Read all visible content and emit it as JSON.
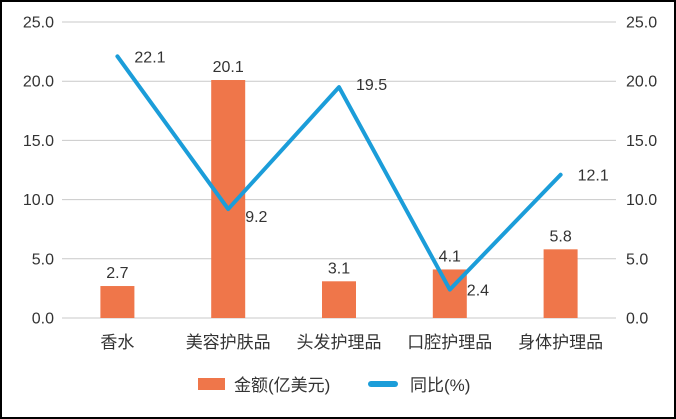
{
  "chart_data": {
    "type": "combo",
    "title": "",
    "categories": [
      "香水",
      "美容护肤品",
      "头发护理品",
      "口腔护理品",
      "身体护理品"
    ],
    "series": [
      {
        "name": "金额(亿美元)",
        "type": "bar",
        "color": "#EF764A",
        "values": [
          2.7,
          20.1,
          3.1,
          4.1,
          5.8
        ],
        "data_labels": [
          "2.7",
          "20.1",
          "3.1",
          "4.1",
          "5.8"
        ]
      },
      {
        "name": "同比(%)",
        "type": "line",
        "color": "#1B9DD9",
        "values": [
          22.1,
          9.2,
          19.5,
          2.4,
          12.1
        ],
        "data_labels": [
          "22.1",
          "9.2",
          "19.5",
          "2.4",
          "12.1"
        ]
      }
    ],
    "left_axis": {
      "min": 0,
      "max": 25,
      "step": 5,
      "tick_labels": [
        "0.0",
        "5.0",
        "10.0",
        "15.0",
        "20.0",
        "25.0"
      ]
    },
    "right_axis": {
      "min": 0,
      "max": 25,
      "step": 5,
      "tick_labels": [
        "0.0",
        "5.0",
        "10.0",
        "15.0",
        "20.0",
        "25.0"
      ]
    },
    "grid": true,
    "legend_position": "bottom"
  },
  "colors": {
    "bar": "#EF764A",
    "line": "#1B9DD9",
    "grid": "#C9C9C9",
    "text": "#333333",
    "border": "#000000",
    "background": "#FFFFFF"
  }
}
